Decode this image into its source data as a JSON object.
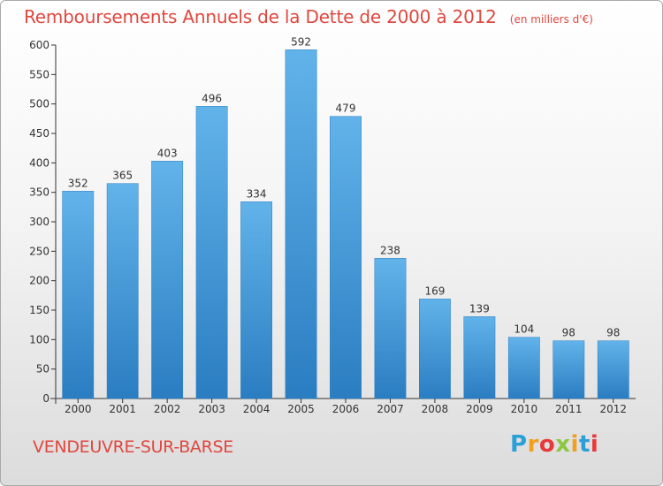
{
  "header": {
    "title": "Remboursements Annuels de la Dette de 2000 à 2012",
    "unit": "(en milliers d'€)"
  },
  "footer": {
    "commune": "VENDEUVRE-SUR-BARSE",
    "logo_text": "Proxiti",
    "logo_colors": [
      "#2a9fd8",
      "#f0a020",
      "#e83a3a",
      "#8dc63f",
      "#f0a020",
      "#2a9fd8",
      "#e83a3a"
    ]
  },
  "colors": {
    "title": "#e0473f",
    "bar_top": "#62b3ea",
    "bar_bottom": "#2a7dc1",
    "axis": "#333333",
    "grid": "#dddddd"
  },
  "chart_data": {
    "type": "bar",
    "title": "Remboursements Annuels de la Dette de 2000 à 2012",
    "subtitle": "(en milliers d'€)",
    "categories": [
      "2000",
      "2001",
      "2002",
      "2003",
      "2004",
      "2005",
      "2006",
      "2007",
      "2008",
      "2009",
      "2010",
      "2011",
      "2012"
    ],
    "values": [
      352,
      365,
      403,
      496,
      334,
      592,
      479,
      238,
      169,
      139,
      104,
      98,
      98
    ],
    "ylim": [
      0,
      600
    ],
    "yticks": [
      0,
      50,
      100,
      150,
      200,
      250,
      300,
      350,
      400,
      450,
      500,
      550,
      600
    ],
    "grid": false,
    "data_labels": true
  }
}
